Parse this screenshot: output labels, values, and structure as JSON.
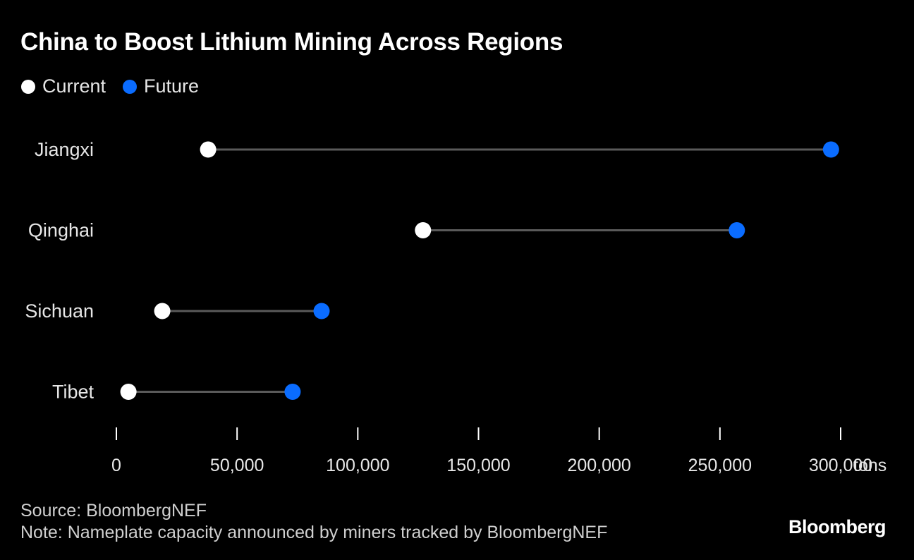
{
  "chart_data": {
    "type": "dumbbell",
    "title": "China to Boost Lithium Mining Across Regions",
    "legend": [
      {
        "label": "Current",
        "color": "#ffffff"
      },
      {
        "label": "Future",
        "color": "#0a6cff"
      }
    ],
    "categories": [
      "Jiangxi",
      "Qinghai",
      "Sichuan",
      "Tibet"
    ],
    "series": [
      {
        "name": "Current",
        "values": [
          38000,
          127000,
          19000,
          5000
        ]
      },
      {
        "name": "Future",
        "values": [
          296000,
          257000,
          85000,
          73000
        ]
      }
    ],
    "xlim": [
      0,
      300000
    ],
    "xticks": [
      0,
      50000,
      100000,
      150000,
      200000,
      250000,
      300000
    ],
    "xtick_labels": [
      "0",
      "50,000",
      "100,000",
      "150,000",
      "200,000",
      "250,000",
      "300,000"
    ],
    "xunit": "tons",
    "legend_position": "top-left",
    "grid": false
  },
  "footer": {
    "source": "Source: BloombergNEF",
    "note": "Note: Nameplate capacity announced by miners tracked by BloombergNEF"
  },
  "brand": "Bloomberg",
  "colors": {
    "background": "#000000",
    "current": "#ffffff",
    "future": "#0a6cff",
    "connector": "#5a5a5a",
    "axis": "#ffffff"
  }
}
